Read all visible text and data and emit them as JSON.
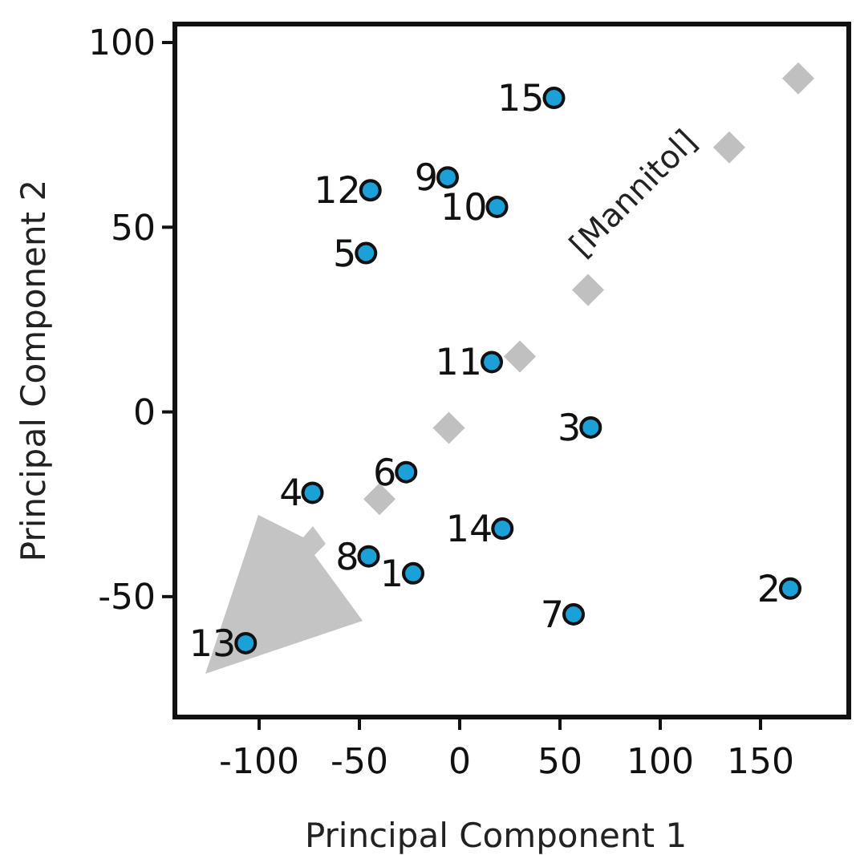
{
  "chart_data": {
    "type": "scatter",
    "xlabel": "Principal Component 1",
    "ylabel": "Principal Component 2",
    "xlim": [
      -142,
      194
    ],
    "ylim": [
      -82.6,
      105
    ],
    "xticks": [
      -100,
      -50,
      0,
      50,
      100,
      150
    ],
    "yticks": [
      -50,
      0,
      50,
      100
    ],
    "grid": false,
    "legend": false,
    "series": [
      {
        "name": "[Mannitol]",
        "marker": "diamond",
        "color": "#c0c0c0",
        "x": [
          -40,
          -5.4,
          30,
          64,
          134.4,
          168.8
        ],
        "values": [
          -23.6,
          -4.3,
          15,
          33,
          71.6,
          90.3
        ]
      },
      {
        "marker": "circle",
        "color": "#1ba1d8",
        "x": [
          -23.2,
          164.8,
          65.3,
          -73.4,
          -46.7,
          -26.7,
          56.8,
          -45.4,
          -6,
          18.6,
          16,
          -44.5,
          -106.7,
          21.3,
          47
        ],
        "values": [
          -43.7,
          -47.8,
          -4.2,
          -21.9,
          43,
          -16.3,
          -54.8,
          -39.1,
          63.5,
          55.5,
          13.5,
          60,
          -62.6,
          -31.6,
          85
        ]
      }
    ],
    "annotations": [
      {
        "text": "1",
        "x": -23.2,
        "y": -43.7
      },
      {
        "text": "2",
        "x": 164.8,
        "y": -47.8
      },
      {
        "text": "3",
        "x": 65.3,
        "y": -4.2
      },
      {
        "text": "4",
        "x": -73.4,
        "y": -21.9
      },
      {
        "text": "5",
        "x": -46.7,
        "y": 43
      },
      {
        "text": "6",
        "x": -26.7,
        "y": -16.3
      },
      {
        "text": "7",
        "x": 56.8,
        "y": -54.8
      },
      {
        "text": "8",
        "x": -45.4,
        "y": -39.1
      },
      {
        "text": "9",
        "x": -6,
        "y": 63.5
      },
      {
        "text": "10",
        "x": 18.6,
        "y": 55.5
      },
      {
        "text": "11",
        "x": 16,
        "y": 13.5
      },
      {
        "text": "12",
        "x": -44.5,
        "y": 60
      },
      {
        "text": "13",
        "x": -106.7,
        "y": -62.6
      },
      {
        "text": "14",
        "x": 21.3,
        "y": -31.6
      },
      {
        "text": "15",
        "x": 47,
        "y": 85
      }
    ]
  }
}
